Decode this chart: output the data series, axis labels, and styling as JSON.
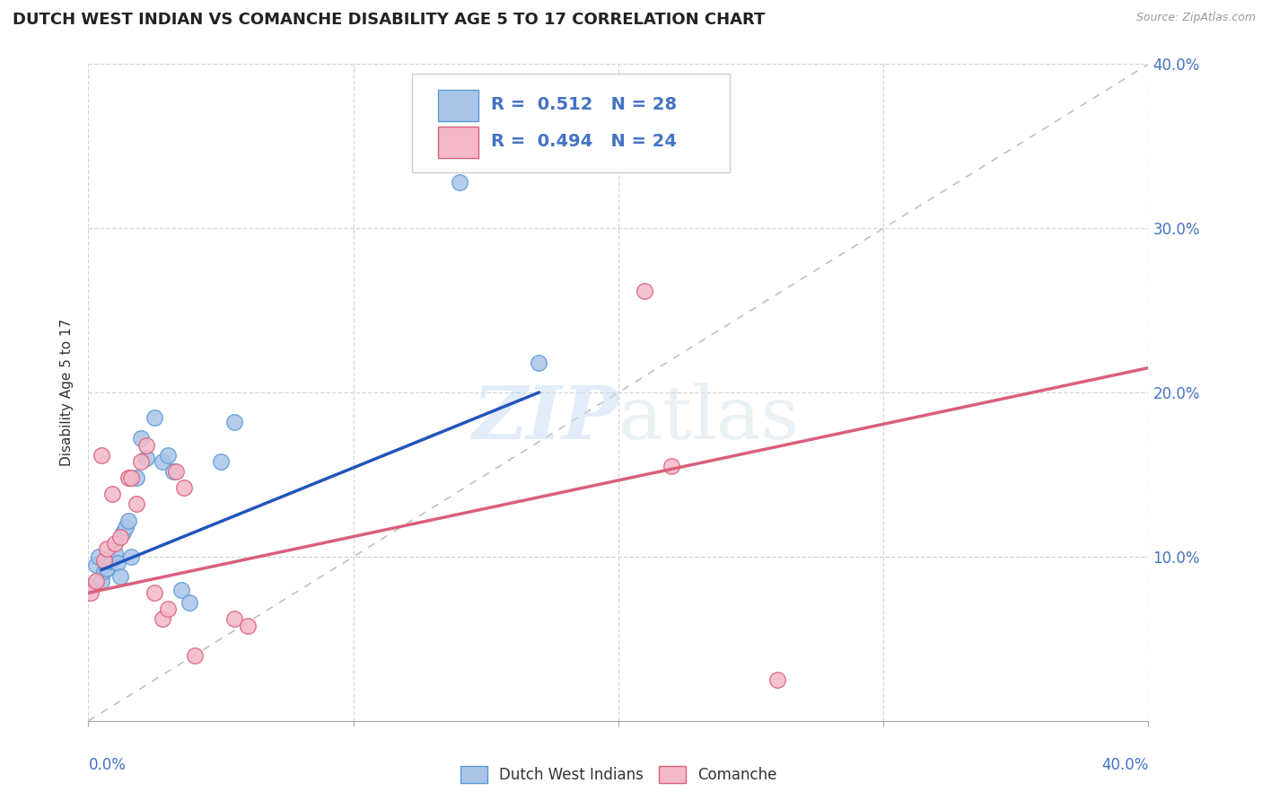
{
  "title": "DUTCH WEST INDIAN VS COMANCHE DISABILITY AGE 5 TO 17 CORRELATION CHART",
  "source": "Source: ZipAtlas.com",
  "ylabel": "Disability Age 5 to 17",
  "xlim": [
    0.0,
    0.4
  ],
  "ylim": [
    0.0,
    0.4
  ],
  "x_ticks": [
    0.0,
    0.1,
    0.2,
    0.3,
    0.4
  ],
  "y_ticks": [
    0.0,
    0.1,
    0.2,
    0.3,
    0.4
  ],
  "x_tick_labels": [
    "0.0%",
    "",
    "",
    "",
    "40.0%"
  ],
  "y_tick_labels_right": [
    "",
    "10.0%",
    "20.0%",
    "30.0%",
    "40.0%"
  ],
  "blue_color": "#aac4e8",
  "blue_edge_color": "#5b9bd5",
  "pink_color": "#f4b8c8",
  "pink_edge_color": "#d9607a",
  "blue_line_color": "#2255bb",
  "pink_line_color": "#d9607a",
  "diagonal_color": "#c0c0c0",
  "legend_R1": "0.512",
  "legend_N1": "28",
  "legend_R2": "0.494",
  "legend_N2": "24",
  "watermark_zip": "ZIP",
  "watermark_atlas": "atlas",
  "grid_color": "#d3d3d3",
  "background_color": "#ffffff",
  "title_fontsize": 13,
  "axis_label_fontsize": 11,
  "tick_fontsize": 12,
  "marker_size": 160,
  "blue_scatter_x": [
    0.001,
    0.003,
    0.004,
    0.005,
    0.006,
    0.007,
    0.008,
    0.009,
    0.01,
    0.011,
    0.012,
    0.013,
    0.014,
    0.015,
    0.016,
    0.018,
    0.02,
    0.022,
    0.025,
    0.028,
    0.03,
    0.032,
    0.035,
    0.038,
    0.05,
    0.055,
    0.14,
    0.17
  ],
  "blue_scatter_y": [
    0.082,
    0.095,
    0.1,
    0.085,
    0.091,
    0.093,
    0.097,
    0.098,
    0.102,
    0.096,
    0.088,
    0.115,
    0.118,
    0.122,
    0.1,
    0.148,
    0.172,
    0.16,
    0.185,
    0.158,
    0.162,
    0.152,
    0.08,
    0.072,
    0.158,
    0.182,
    0.328,
    0.218
  ],
  "pink_scatter_x": [
    0.001,
    0.003,
    0.005,
    0.006,
    0.007,
    0.009,
    0.01,
    0.012,
    0.015,
    0.016,
    0.018,
    0.02,
    0.022,
    0.025,
    0.028,
    0.03,
    0.033,
    0.036,
    0.04,
    0.055,
    0.06,
    0.21,
    0.22,
    0.26
  ],
  "pink_scatter_y": [
    0.078,
    0.085,
    0.162,
    0.098,
    0.105,
    0.138,
    0.108,
    0.112,
    0.148,
    0.148,
    0.132,
    0.158,
    0.168,
    0.078,
    0.062,
    0.068,
    0.152,
    0.142,
    0.04,
    0.062,
    0.058,
    0.262,
    0.155,
    0.025
  ],
  "blue_line_x": [
    0.005,
    0.17
  ],
  "blue_line_y": [
    0.092,
    0.2
  ],
  "pink_line_x": [
    0.0,
    0.4
  ],
  "pink_line_y": [
    0.078,
    0.215
  ],
  "bottom_legend_labels": [
    "Dutch West Indians",
    "Comanche"
  ]
}
